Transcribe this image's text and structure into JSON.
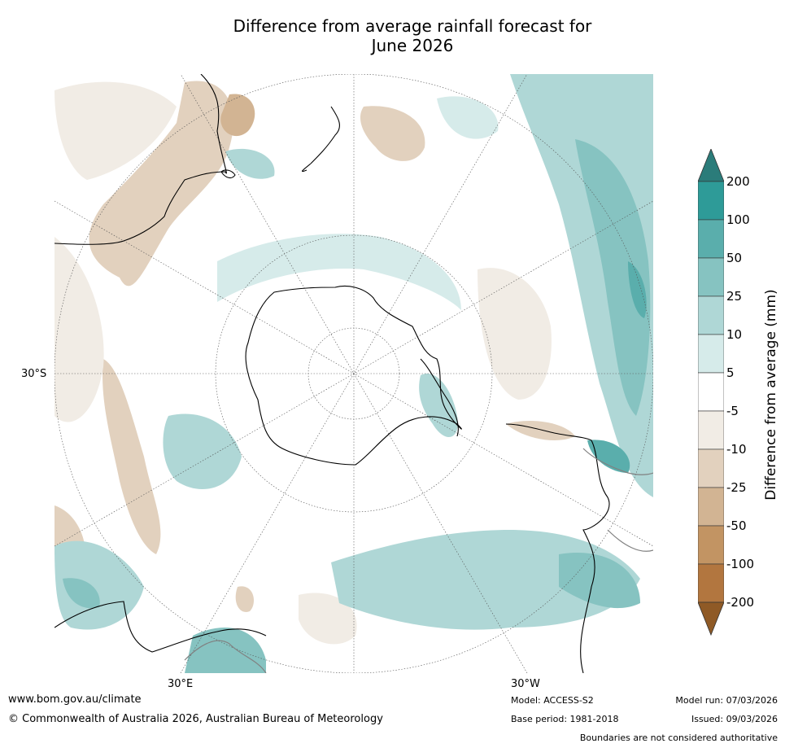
{
  "title_line1": "Difference from average rainfall forecast for",
  "title_line2": "June 2026",
  "map": {
    "projection": "south-polar-stereographic",
    "lat_label": "30°S",
    "lon_labels": [
      "30°E",
      "30°W"
    ],
    "colors": {
      "ocean": "#ffffff",
      "coast": "#000000",
      "border": "#808080",
      "grid": "#555555"
    }
  },
  "colorbar": {
    "title": "Difference from average (mm)",
    "ticks": [
      "200",
      "100",
      "50",
      "25",
      "10",
      "5",
      "-5",
      "-10",
      "-25",
      "-50",
      "-100",
      "-200"
    ],
    "bins": [
      {
        "color": "#2e9b98"
      },
      {
        "color": "#5aaeac"
      },
      {
        "color": "#86c3c1"
      },
      {
        "color": "#afd7d6"
      },
      {
        "color": "#d6ebea"
      },
      {
        "color": "#ffffff"
      },
      {
        "color": "#f1ece5"
      },
      {
        "color": "#e2d1be"
      },
      {
        "color": "#d2b493"
      },
      {
        "color": "#c29463"
      },
      {
        "color": "#b2763f"
      }
    ],
    "top_extend_color": "#2b7c7a",
    "bottom_extend_color": "#8f5a26"
  },
  "footer": {
    "website": "www.bom.gov.au/climate",
    "copyright": "© Commonwealth of Australia 2026, Australian Bureau of Meteorology",
    "model": "Model: ACCESS-S2",
    "base_period": "Base period: 1981-2018",
    "model_run": "Model run: 07/03/2026",
    "issued": "Issued: 09/03/2026",
    "disclaimer": "Boundaries are not considered authoritative"
  }
}
